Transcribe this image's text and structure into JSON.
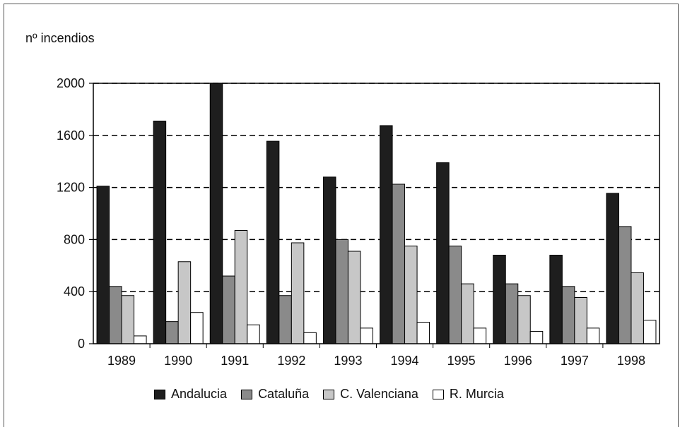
{
  "chart_data": {
    "type": "bar",
    "ylabel": "nº incendios",
    "ylim": [
      0,
      2000
    ],
    "yticks": [
      0,
      400,
      800,
      1200,
      1600,
      2000
    ],
    "categories": [
      "1989",
      "1990",
      "1991",
      "1992",
      "1993",
      "1994",
      "1995",
      "1996",
      "1997",
      "1998"
    ],
    "grid": "dashed-horizontal",
    "legend_position": "bottom",
    "series": [
      {
        "name": "Andalucia",
        "color": "#1e1e1e",
        "values": [
          1210,
          1710,
          2000,
          1555,
          1280,
          1675,
          1390,
          680,
          680,
          1155
        ]
      },
      {
        "name": "Cataluña",
        "color": "#8a8a8a",
        "values": [
          440,
          170,
          520,
          370,
          800,
          1225,
          750,
          460,
          440,
          900
        ]
      },
      {
        "name": "C. Valenciana",
        "color": "#c7c7c7",
        "values": [
          370,
          630,
          870,
          775,
          710,
          750,
          460,
          370,
          355,
          545
        ]
      },
      {
        "name": "R. Murcia",
        "color": "#ffffff",
        "values": [
          60,
          240,
          145,
          85,
          120,
          165,
          120,
          95,
          120,
          180
        ]
      }
    ]
  }
}
